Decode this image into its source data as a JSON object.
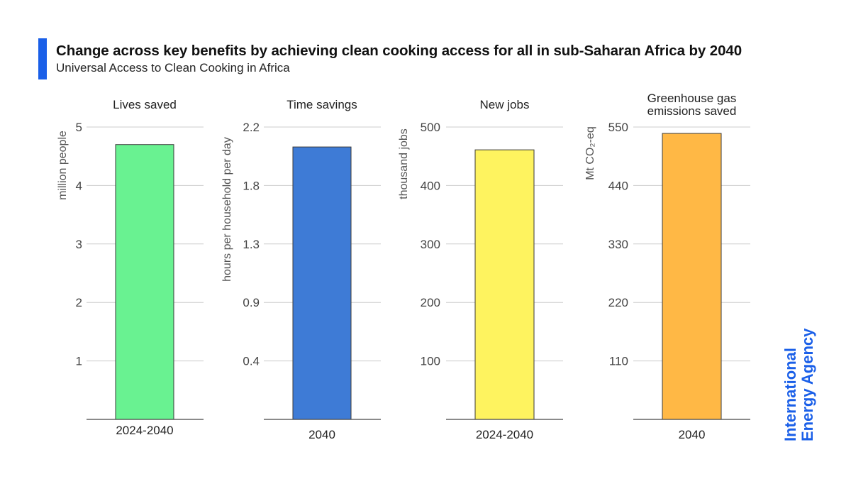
{
  "header": {
    "title": "Change across key benefits by achieving clean cooking access for all in sub-Saharan Africa by 2040",
    "subtitle": "Universal Access to Clean Cooking in Africa",
    "accent_color": "#1a5fe8"
  },
  "logo": {
    "line1": "International",
    "line2": "Energy Agency",
    "color": "#1a5fe8"
  },
  "chart_data": [
    {
      "type": "bar",
      "title": "Lives saved",
      "categories": [
        "2024-2040"
      ],
      "values": [
        4.7
      ],
      "ylabel": "million people",
      "xlabel": "",
      "ylim": [
        0,
        5
      ],
      "yticks": [
        1,
        2,
        3,
        4,
        5
      ],
      "ytick_labels": [
        "1",
        "2",
        "3",
        "4",
        "5"
      ],
      "color": "#69f291"
    },
    {
      "type": "bar",
      "title": "Time savings",
      "categories": [
        "2040"
      ],
      "values": [
        2.05
      ],
      "ylabel": "hours per household per day",
      "xlabel": "",
      "ylim": [
        0,
        2.2
      ],
      "yticks": [
        0.44,
        0.88,
        1.32,
        1.76,
        2.2
      ],
      "ytick_labels": [
        "0.4",
        "0.9",
        "1.3",
        "1.8",
        "2.2"
      ],
      "color": "#3e7bd6"
    },
    {
      "type": "bar",
      "title": "New jobs",
      "categories": [
        "2024-2040"
      ],
      "values": [
        461
      ],
      "ylabel": "thousand jobs",
      "xlabel": "",
      "ylim": [
        0,
        500
      ],
      "yticks": [
        100,
        200,
        300,
        400,
        500
      ],
      "ytick_labels": [
        "100",
        "200",
        "300",
        "400",
        "500"
      ],
      "color": "#fef35f"
    },
    {
      "type": "bar",
      "title": "Greenhouse gas emissions saved",
      "title_lines": [
        "Greenhouse gas",
        "emissions saved"
      ],
      "categories": [
        "2040"
      ],
      "values": [
        538
      ],
      "ylabel": "Mt CO₂-eq",
      "xlabel": "",
      "ylim": [
        0,
        550
      ],
      "yticks": [
        110,
        220,
        330,
        440,
        550
      ],
      "ytick_labels": [
        "110",
        "220",
        "330",
        "440",
        "550"
      ],
      "color": "#ffb845"
    }
  ]
}
